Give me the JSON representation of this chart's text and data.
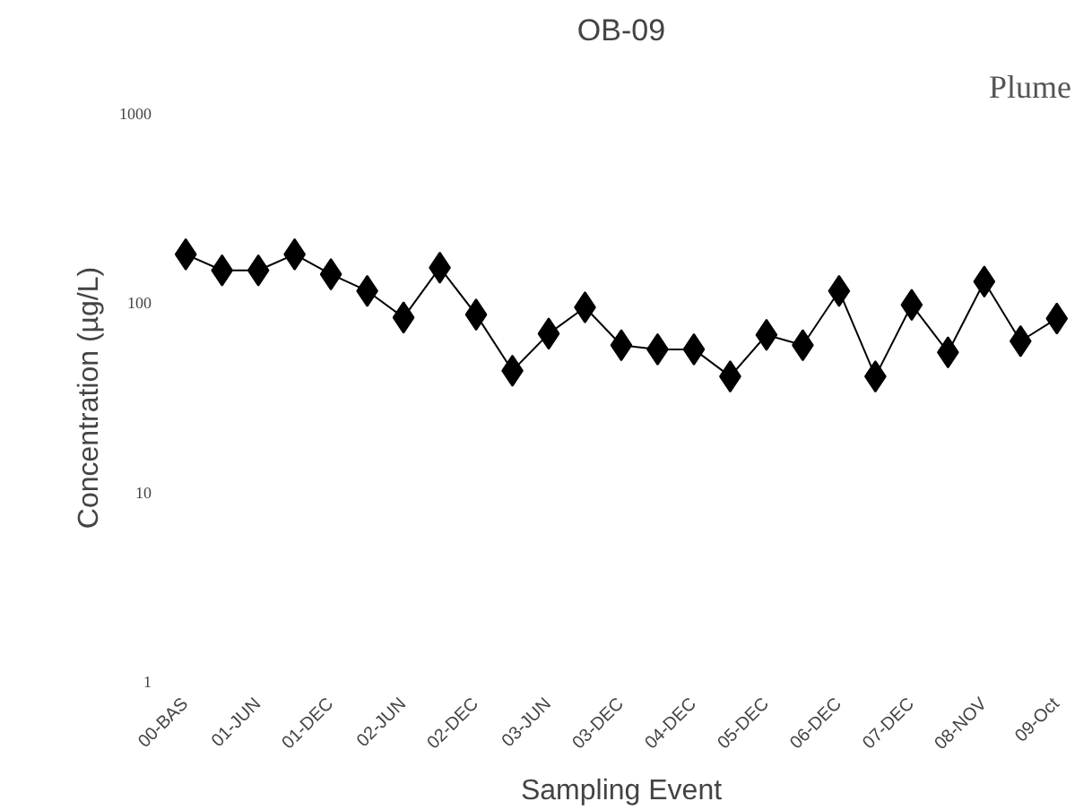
{
  "chart_data": {
    "type": "line",
    "title": "OB-09",
    "xlabel": "Sampling Event",
    "ylabel": "Concentration (µg/L)",
    "annotations": [
      "Plume"
    ],
    "categories": [
      "00-BAS",
      null,
      "01-JUN",
      null,
      "01-DEC",
      null,
      "02-JUN",
      null,
      "02-DEC",
      null,
      "03-JUN",
      null,
      "03-DEC",
      null,
      "04-DEC",
      null,
      "05-DEC",
      null,
      "06-DEC",
      null,
      "07-DEC",
      null,
      "08-NOV",
      null,
      "09-Oct"
    ],
    "series": [
      {
        "color": "#000000",
        "values": [
          181,
          149,
          149,
          181,
          142,
          116,
          84,
          154,
          87,
          44,
          69,
          95,
          60,
          57,
          57,
          41,
          68,
          60,
          116,
          41,
          98,
          55,
          130,
          63,
          83
        ]
      }
    ],
    "log": "y",
    "ylim": [
      1,
      1000
    ],
    "yticks": [
      1,
      10,
      100,
      1000
    ],
    "grid": false,
    "marker": "diamond",
    "line_style": "solid"
  }
}
